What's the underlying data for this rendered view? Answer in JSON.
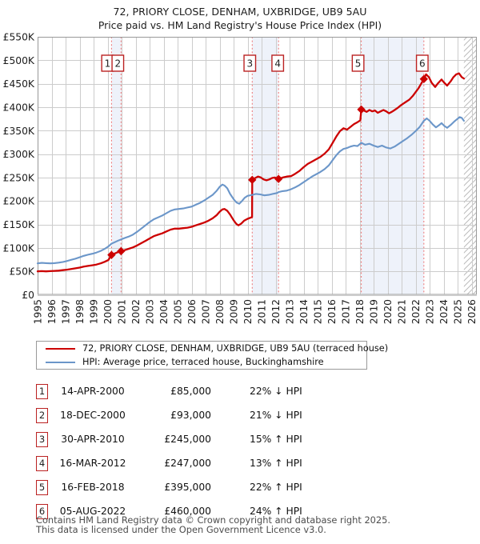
{
  "title": "72, PRIORY CLOSE, DENHAM, UXBRIDGE, UB9 5AU",
  "subtitle": "Price paid vs. HM Land Registry's House Price Index (HPI)",
  "legend": [
    {
      "label": "72, PRIORY CLOSE, DENHAM, UXBRIDGE, UB9 5AU (terraced house)",
      "color": "#cc0000"
    },
    {
      "label": "HPI: Average price, terraced house, Buckinghamshire",
      "color": "#6b96c9"
    }
  ],
  "sales": [
    {
      "n": 1,
      "date": "14-APR-2000",
      "price": "£85,000",
      "hpi": "22% ↓ HPI",
      "year": 2000.28,
      "value": 85
    },
    {
      "n": 2,
      "date": "18-DEC-2000",
      "price": "£93,000",
      "hpi": "21% ↓ HPI",
      "year": 2000.96,
      "value": 93
    },
    {
      "n": 3,
      "date": "30-APR-2010",
      "price": "£245,000",
      "hpi": "15% ↑ HPI",
      "year": 2010.33,
      "value": 245
    },
    {
      "n": 4,
      "date": "16-MAR-2012",
      "price": "£247,000",
      "hpi": "13% ↑ HPI",
      "year": 2012.21,
      "value": 247
    },
    {
      "n": 5,
      "date": "16-FEB-2018",
      "price": "£395,000",
      "hpi": "22% ↑ HPI",
      "year": 2018.12,
      "value": 395
    },
    {
      "n": 6,
      "date": "05-AUG-2022",
      "price": "£460,000",
      "hpi": "24% ↑ HPI",
      "year": 2022.59,
      "value": 460
    }
  ],
  "footer": {
    "line1": "Contains HM Land Registry data © Crown copyright and database right 2025.",
    "line2": "This data is licensed under the Open Government Licence v3.0."
  },
  "chart_data": {
    "type": "line",
    "title": "72, PRIORY CLOSE, DENHAM, UXBRIDGE, UB9 5AU — Price paid vs. HPI",
    "xlabel": "",
    "ylabel": "",
    "x_range": [
      1995,
      2026.4
    ],
    "ylim": [
      0,
      550
    ],
    "y_unit": "£K",
    "xticks": [
      1995,
      1996,
      1997,
      1998,
      1999,
      2000,
      2001,
      2002,
      2003,
      2004,
      2005,
      2006,
      2007,
      2008,
      2009,
      2010,
      2011,
      2012,
      2013,
      2014,
      2015,
      2016,
      2017,
      2018,
      2019,
      2020,
      2021,
      2022,
      2023,
      2024,
      2025,
      2026
    ],
    "yticks": [
      0,
      50,
      100,
      150,
      200,
      250,
      300,
      350,
      400,
      450,
      500,
      550
    ],
    "grid": true,
    "legend_position": "bottom",
    "future_hatch_from": 2025.45,
    "sale_bands": [
      [
        2000.28,
        2000.96
      ],
      [
        2010.33,
        2012.21
      ],
      [
        2018.12,
        2022.59
      ]
    ],
    "colors": {
      "property": "#cc0000",
      "hpi": "#6b96c9",
      "sale_line": "#ee7272",
      "band": "#eef2fa",
      "grid": "#cccccc",
      "border": "#999999",
      "hatch": "#bbbbbb",
      "marker_box_border": "#bb2222",
      "tick_text": "#1c1c1c"
    },
    "series": [
      {
        "name": "72, PRIORY CLOSE, DENHAM, UXBRIDGE, UB9 5AU (terraced house)",
        "color": "#cc0000",
        "width": 2.3,
        "points": [
          [
            1995.0,
            50
          ],
          [
            1995.3,
            50.5
          ],
          [
            1995.6,
            50
          ],
          [
            1995.9,
            50.5
          ],
          [
            1996.2,
            51
          ],
          [
            1996.5,
            51.5
          ],
          [
            1996.8,
            52.5
          ],
          [
            1997.1,
            53.5
          ],
          [
            1997.4,
            55
          ],
          [
            1997.7,
            56.5
          ],
          [
            1998.0,
            58
          ],
          [
            1998.3,
            60
          ],
          [
            1998.6,
            61.5
          ],
          [
            1998.9,
            63
          ],
          [
            1999.2,
            64.5
          ],
          [
            1999.5,
            67
          ],
          [
            1999.8,
            70.5
          ],
          [
            2000.05,
            74
          ],
          [
            2000.28,
            85
          ],
          [
            2000.5,
            88
          ],
          [
            2000.75,
            91
          ],
          [
            2000.96,
            93
          ],
          [
            2001.2,
            95
          ],
          [
            2001.5,
            98
          ],
          [
            2001.8,
            101
          ],
          [
            2002.1,
            105
          ],
          [
            2002.4,
            110
          ],
          [
            2002.7,
            115
          ],
          [
            2003.0,
            120
          ],
          [
            2003.3,
            125
          ],
          [
            2003.6,
            128
          ],
          [
            2003.9,
            131
          ],
          [
            2004.2,
            135
          ],
          [
            2004.5,
            139
          ],
          [
            2004.8,
            141
          ],
          [
            2005.1,
            141
          ],
          [
            2005.4,
            142
          ],
          [
            2005.7,
            143
          ],
          [
            2006.0,
            145
          ],
          [
            2006.3,
            148
          ],
          [
            2006.6,
            151
          ],
          [
            2006.9,
            154
          ],
          [
            2007.2,
            158
          ],
          [
            2007.5,
            163
          ],
          [
            2007.8,
            170
          ],
          [
            2008.0,
            177
          ],
          [
            2008.2,
            182
          ],
          [
            2008.35,
            183
          ],
          [
            2008.55,
            179
          ],
          [
            2008.75,
            171
          ],
          [
            2009.0,
            159
          ],
          [
            2009.2,
            151
          ],
          [
            2009.35,
            148
          ],
          [
            2009.55,
            152
          ],
          [
            2009.75,
            158
          ],
          [
            2010.0,
            162
          ],
          [
            2010.25,
            165
          ],
          [
            2010.32,
            166
          ],
          [
            2010.33,
            245
          ],
          [
            2010.55,
            249
          ],
          [
            2010.75,
            252
          ],
          [
            2010.95,
            250
          ],
          [
            2011.15,
            246
          ],
          [
            2011.35,
            244
          ],
          [
            2011.55,
            246
          ],
          [
            2011.75,
            249
          ],
          [
            2011.95,
            250
          ],
          [
            2012.1,
            248
          ],
          [
            2012.21,
            247
          ],
          [
            2012.5,
            250
          ],
          [
            2012.8,
            252
          ],
          [
            2013.1,
            253
          ],
          [
            2013.4,
            258
          ],
          [
            2013.7,
            264
          ],
          [
            2014.0,
            272
          ],
          [
            2014.3,
            279
          ],
          [
            2014.6,
            284
          ],
          [
            2014.9,
            289
          ],
          [
            2015.2,
            294
          ],
          [
            2015.5,
            301
          ],
          [
            2015.8,
            310
          ],
          [
            2016.1,
            325
          ],
          [
            2016.35,
            338
          ],
          [
            2016.6,
            349
          ],
          [
            2016.85,
            355
          ],
          [
            2017.1,
            352
          ],
          [
            2017.35,
            358
          ],
          [
            2017.6,
            364
          ],
          [
            2017.85,
            368
          ],
          [
            2018.05,
            372
          ],
          [
            2018.12,
            395
          ],
          [
            2018.3,
            393
          ],
          [
            2018.5,
            390
          ],
          [
            2018.7,
            394
          ],
          [
            2018.9,
            391
          ],
          [
            2019.1,
            393
          ],
          [
            2019.3,
            388
          ],
          [
            2019.5,
            391
          ],
          [
            2019.7,
            394
          ],
          [
            2019.9,
            391
          ],
          [
            2020.1,
            387
          ],
          [
            2020.3,
            390
          ],
          [
            2020.5,
            394
          ],
          [
            2020.7,
            398
          ],
          [
            2020.9,
            403
          ],
          [
            2021.1,
            407
          ],
          [
            2021.3,
            411
          ],
          [
            2021.55,
            416
          ],
          [
            2021.8,
            424
          ],
          [
            2022.0,
            432
          ],
          [
            2022.2,
            440
          ],
          [
            2022.4,
            450
          ],
          [
            2022.59,
            460
          ],
          [
            2022.75,
            470
          ],
          [
            2022.95,
            464
          ],
          [
            2023.15,
            452
          ],
          [
            2023.4,
            443
          ],
          [
            2023.6,
            451
          ],
          [
            2023.85,
            459
          ],
          [
            2024.05,
            452
          ],
          [
            2024.25,
            446
          ],
          [
            2024.5,
            455
          ],
          [
            2024.7,
            464
          ],
          [
            2024.9,
            470
          ],
          [
            2025.1,
            472
          ],
          [
            2025.3,
            464
          ],
          [
            2025.45,
            461
          ]
        ]
      },
      {
        "name": "HPI: Average price, terraced house, Buckinghamshire",
        "color": "#6b96c9",
        "width": 2.1,
        "points": [
          [
            1995.0,
            67
          ],
          [
            1995.3,
            68
          ],
          [
            1995.6,
            67.5
          ],
          [
            1995.9,
            67
          ],
          [
            1996.2,
            67.5
          ],
          [
            1996.5,
            68.5
          ],
          [
            1996.8,
            70
          ],
          [
            1997.1,
            72
          ],
          [
            1997.4,
            74.5
          ],
          [
            1997.7,
            77
          ],
          [
            1998.0,
            80
          ],
          [
            1998.3,
            83
          ],
          [
            1998.6,
            85.5
          ],
          [
            1998.9,
            87.5
          ],
          [
            1999.2,
            90
          ],
          [
            1999.5,
            93.5
          ],
          [
            1999.8,
            98
          ],
          [
            2000.05,
            103
          ],
          [
            2000.28,
            109
          ],
          [
            2000.5,
            112
          ],
          [
            2000.75,
            115.5
          ],
          [
            2000.96,
            118
          ],
          [
            2001.2,
            121
          ],
          [
            2001.5,
            124
          ],
          [
            2001.8,
            128
          ],
          [
            2002.1,
            134
          ],
          [
            2002.4,
            141
          ],
          [
            2002.7,
            148
          ],
          [
            2003.0,
            155
          ],
          [
            2003.3,
            161
          ],
          [
            2003.6,
            165
          ],
          [
            2003.9,
            169
          ],
          [
            2004.2,
            174
          ],
          [
            2004.5,
            179
          ],
          [
            2004.8,
            182
          ],
          [
            2005.1,
            183
          ],
          [
            2005.4,
            184
          ],
          [
            2005.7,
            186
          ],
          [
            2006.0,
            188
          ],
          [
            2006.3,
            192
          ],
          [
            2006.6,
            196
          ],
          [
            2006.9,
            201
          ],
          [
            2007.2,
            207
          ],
          [
            2007.5,
            213
          ],
          [
            2007.8,
            222
          ],
          [
            2008.0,
            230
          ],
          [
            2008.2,
            235
          ],
          [
            2008.35,
            233
          ],
          [
            2008.55,
            227
          ],
          [
            2008.75,
            215
          ],
          [
            2009.0,
            204
          ],
          [
            2009.2,
            197
          ],
          [
            2009.4,
            194
          ],
          [
            2009.6,
            200
          ],
          [
            2009.8,
            207
          ],
          [
            2010.0,
            211
          ],
          [
            2010.33,
            213
          ],
          [
            2010.6,
            215
          ],
          [
            2010.9,
            214
          ],
          [
            2011.2,
            212
          ],
          [
            2011.5,
            213
          ],
          [
            2011.8,
            215
          ],
          [
            2012.1,
            217
          ],
          [
            2012.21,
            219
          ],
          [
            2012.5,
            221
          ],
          [
            2012.8,
            222
          ],
          [
            2013.1,
            225
          ],
          [
            2013.4,
            229
          ],
          [
            2013.7,
            234
          ],
          [
            2014.0,
            240
          ],
          [
            2014.3,
            246
          ],
          [
            2014.6,
            252
          ],
          [
            2014.9,
            257
          ],
          [
            2015.2,
            262
          ],
          [
            2015.5,
            268
          ],
          [
            2015.8,
            276
          ],
          [
            2016.1,
            288
          ],
          [
            2016.35,
            298
          ],
          [
            2016.6,
            306
          ],
          [
            2016.85,
            311
          ],
          [
            2017.1,
            313
          ],
          [
            2017.35,
            316
          ],
          [
            2017.6,
            318
          ],
          [
            2017.85,
            317
          ],
          [
            2018.12,
            324
          ],
          [
            2018.4,
            320
          ],
          [
            2018.7,
            322
          ],
          [
            2019.0,
            318
          ],
          [
            2019.3,
            315
          ],
          [
            2019.6,
            318
          ],
          [
            2019.9,
            314
          ],
          [
            2020.2,
            312
          ],
          [
            2020.5,
            316
          ],
          [
            2020.8,
            322
          ],
          [
            2021.1,
            328
          ],
          [
            2021.4,
            334
          ],
          [
            2021.7,
            341
          ],
          [
            2022.0,
            349
          ],
          [
            2022.3,
            358
          ],
          [
            2022.59,
            371
          ],
          [
            2022.8,
            376
          ],
          [
            2023.0,
            371
          ],
          [
            2023.2,
            364
          ],
          [
            2023.45,
            357
          ],
          [
            2023.65,
            361
          ],
          [
            2023.85,
            366
          ],
          [
            2024.05,
            360
          ],
          [
            2024.25,
            356
          ],
          [
            2024.5,
            362
          ],
          [
            2024.75,
            369
          ],
          [
            2024.95,
            374
          ],
          [
            2025.15,
            379
          ],
          [
            2025.3,
            377
          ],
          [
            2025.45,
            371
          ]
        ]
      }
    ]
  }
}
